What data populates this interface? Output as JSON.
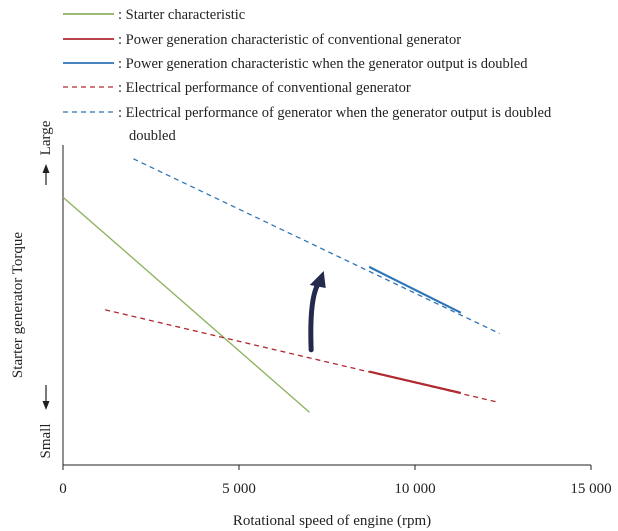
{
  "chart_data": {
    "type": "line",
    "title": "",
    "xlabel": "Rotational speed of engine  (rpm)",
    "ylabel": "Starter generator  Torque",
    "y_end_labels": {
      "top": "Large",
      "bottom": "Small"
    },
    "xlim": [
      0,
      15000
    ],
    "ylim": [
      0,
      1
    ],
    "x_ticks": [
      {
        "value": 0,
        "label": "0"
      },
      {
        "value": 5000,
        "label": "5 000"
      },
      {
        "value": 10000,
        "label": "10 000"
      },
      {
        "value": 15000,
        "label": "15 000"
      }
    ],
    "grid": false,
    "legend_position": "top-left",
    "series": [
      {
        "name": "Starter characteristic",
        "style": "solid",
        "color": "#8bb05c",
        "x": [
          0,
          7000
        ],
        "y": [
          0.837,
          0.165
        ]
      },
      {
        "name": "Power generation characteristic of conventional generator",
        "style": "solid",
        "color": "#b02a30",
        "x": [
          8700,
          11300
        ],
        "y": [
          0.292,
          0.225
        ]
      },
      {
        "name": "Power generation characteristic when the generator output is doubled",
        "style": "solid",
        "color": "#2e75b6",
        "x": [
          8700,
          11300
        ],
        "y": [
          0.619,
          0.476
        ]
      },
      {
        "name": "Electrical performance of conventional generator",
        "style": "dashed",
        "color": "#b02a30",
        "x": [
          1200,
          12400
        ],
        "y": [
          0.485,
          0.195
        ]
      },
      {
        "name": "Electrical performance of generator when the generator output  is doubled",
        "name_line2": "doubled",
        "style": "dashed",
        "color": "#2e75b6",
        "x": [
          2000,
          12400
        ],
        "y": [
          0.957,
          0.411
        ]
      }
    ],
    "annotations": [
      {
        "type": "curved-arrow",
        "color": "#242a4e",
        "from": [
          7050,
          0.36
        ],
        "to": [
          7350,
          0.6
        ]
      }
    ]
  }
}
